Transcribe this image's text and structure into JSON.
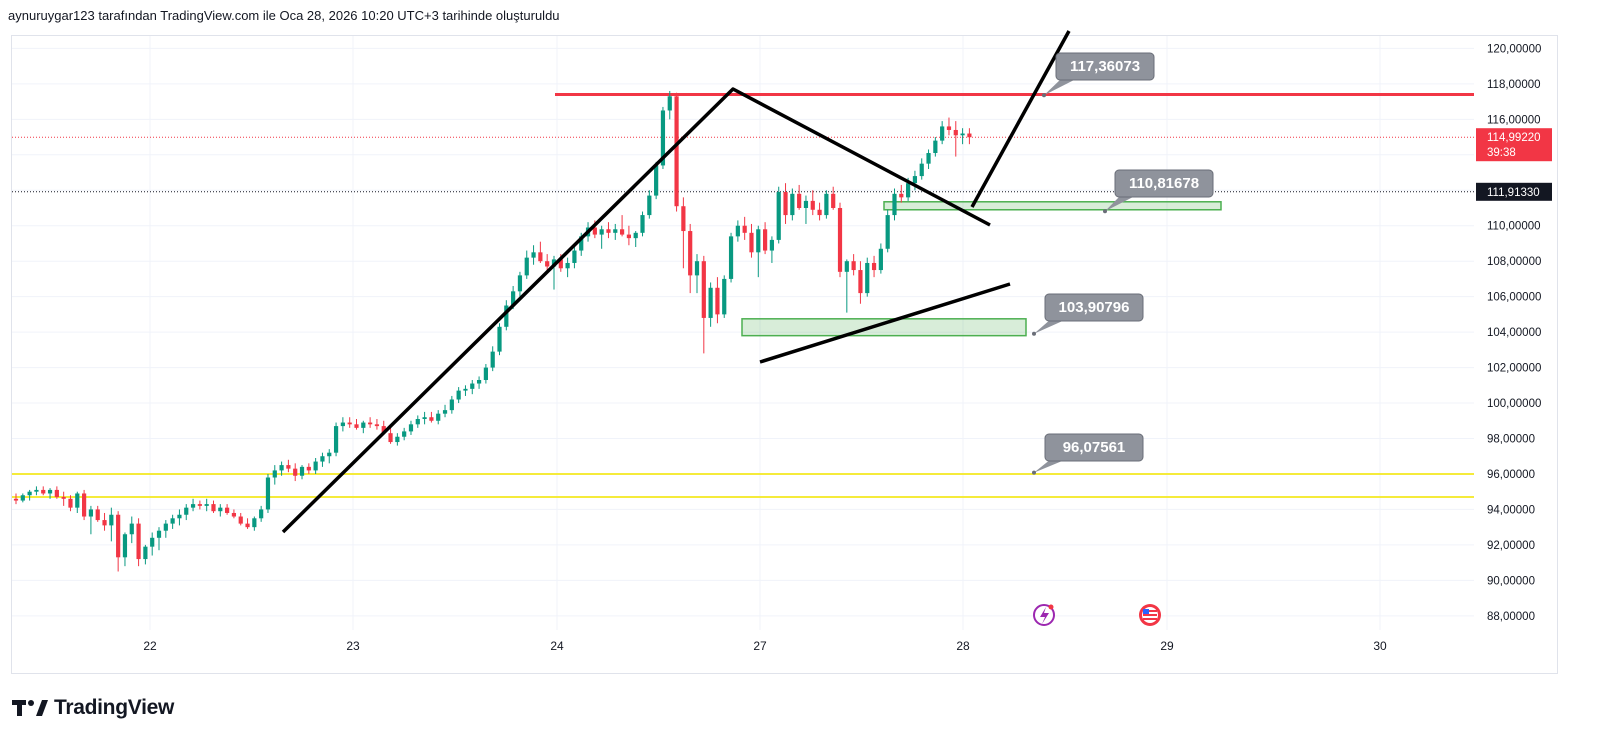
{
  "header": {
    "text": "aynuruygar123 tarafından TradingView.com ile Oca 28, 2026 10:20 UTC+3 tarihinde oluşturuldu"
  },
  "brand": {
    "name": "TradingView"
  },
  "chart_data": {
    "type": "candlestick",
    "yticks": [
      "120,00000",
      "118,00000",
      "116,00000",
      "114,00000",
      "112,00000",
      "110,00000",
      "108,00000",
      "106,00000",
      "104,00000",
      "102,00000",
      "100,00000",
      "98,00000",
      "96,00000",
      "94,00000",
      "92,00000",
      "90,00000",
      "88,00000"
    ],
    "ytick_values": [
      120,
      118,
      116,
      114,
      112,
      110,
      108,
      106,
      104,
      102,
      100,
      98,
      96,
      94,
      92,
      90,
      88
    ],
    "ylim": [
      87.2,
      120.7
    ],
    "xticks": [
      "22",
      "23",
      "24",
      "27",
      "28",
      "29",
      "30"
    ],
    "grid": true,
    "current_price": {
      "label": "114,99220",
      "countdown": "39:38",
      "value": 114.9922,
      "color": "#f23645"
    },
    "ref_price": {
      "label": "111,91330",
      "value": 111.9133
    },
    "price_labels": [
      {
        "text": "117,36073",
        "value": 117.36073
      },
      {
        "text": "110,81678",
        "value": 110.81678
      },
      {
        "text": "103,90796",
        "value": 103.90796
      },
      {
        "text": "96,07561",
        "value": 96.07561
      }
    ],
    "horizontal_lines": [
      {
        "value": 117.4,
        "color": "#f23645"
      },
      {
        "value": 96.0,
        "color": "#f5eb3b"
      },
      {
        "value": 94.7,
        "color": "#f5eb3b"
      }
    ],
    "zones": [
      {
        "from": 103.8,
        "to": 104.75,
        "color": "#4caf50"
      },
      {
        "from": 110.9,
        "to": 111.35,
        "color": "#4caf50"
      }
    ],
    "colors": {
      "up": "#089981",
      "down": "#f23645",
      "trend": "#000000"
    },
    "candles": [
      [
        94.6,
        94.9,
        94.3,
        94.5
      ],
      [
        94.5,
        94.9,
        94.4,
        94.8
      ],
      [
        94.8,
        95.1,
        94.5,
        95.0
      ],
      [
        95.0,
        95.3,
        94.8,
        95.1
      ],
      [
        95.1,
        95.3,
        94.8,
        94.9
      ],
      [
        94.9,
        95.2,
        94.6,
        95.1
      ],
      [
        95.1,
        95.3,
        94.6,
        94.7
      ],
      [
        94.7,
        95.0,
        94.2,
        94.6
      ],
      [
        94.6,
        94.8,
        93.9,
        94.1
      ],
      [
        94.1,
        95.0,
        93.8,
        94.9
      ],
      [
        94.9,
        95.1,
        93.4,
        93.6
      ],
      [
        93.6,
        94.2,
        92.6,
        94.0
      ],
      [
        94.0,
        94.2,
        93.3,
        93.4
      ],
      [
        93.4,
        93.8,
        92.8,
        93.1
      ],
      [
        93.1,
        94.1,
        92.2,
        93.7
      ],
      [
        93.7,
        93.9,
        90.5,
        91.3
      ],
      [
        91.3,
        92.7,
        90.8,
        92.6
      ],
      [
        92.6,
        93.6,
        92.1,
        93.2
      ],
      [
        93.2,
        93.5,
        90.8,
        91.2
      ],
      [
        91.2,
        92.0,
        90.9,
        91.9
      ],
      [
        91.9,
        92.7,
        91.4,
        92.4
      ],
      [
        92.4,
        93.0,
        91.7,
        92.8
      ],
      [
        92.8,
        93.4,
        92.4,
        93.2
      ],
      [
        93.2,
        93.7,
        92.9,
        93.5
      ],
      [
        93.5,
        94.0,
        93.1,
        93.7
      ],
      [
        93.7,
        94.3,
        93.4,
        94.1
      ],
      [
        94.1,
        94.6,
        93.9,
        94.3
      ],
      [
        94.3,
        94.5,
        94.0,
        94.2
      ],
      [
        94.2,
        94.6,
        93.9,
        94.3
      ],
      [
        94.3,
        94.5,
        93.8,
        93.9
      ],
      [
        93.9,
        94.3,
        93.6,
        94.1
      ],
      [
        94.1,
        94.3,
        93.7,
        93.8
      ],
      [
        93.8,
        94.0,
        93.5,
        93.6
      ],
      [
        93.6,
        93.8,
        93.1,
        93.2
      ],
      [
        93.2,
        93.5,
        92.9,
        93.0
      ],
      [
        93.0,
        93.6,
        92.8,
        93.5
      ],
      [
        93.5,
        94.2,
        93.3,
        94.0
      ],
      [
        94.0,
        96.0,
        93.8,
        95.8
      ],
      [
        95.8,
        96.5,
        95.4,
        96.2
      ],
      [
        96.2,
        96.7,
        95.9,
        96.5
      ],
      [
        96.5,
        96.8,
        96.1,
        96.3
      ],
      [
        96.3,
        96.6,
        95.6,
        95.9
      ],
      [
        95.9,
        96.5,
        95.7,
        96.4
      ],
      [
        96.4,
        96.6,
        96.0,
        96.2
      ],
      [
        96.2,
        96.9,
        96.0,
        96.7
      ],
      [
        96.7,
        97.2,
        96.4,
        97.0
      ],
      [
        97.0,
        97.4,
        96.6,
        97.2
      ],
      [
        97.2,
        98.9,
        97.0,
        98.7
      ],
      [
        98.7,
        99.2,
        98.4,
        98.9
      ],
      [
        98.9,
        99.2,
        98.6,
        98.8
      ],
      [
        98.8,
        99.1,
        98.5,
        98.6
      ],
      [
        98.6,
        99.0,
        98.3,
        98.9
      ],
      [
        98.9,
        99.2,
        98.6,
        98.8
      ],
      [
        98.8,
        99.1,
        98.5,
        98.7
      ],
      [
        98.7,
        99.0,
        98.2,
        98.3
      ],
      [
        98.3,
        98.6,
        97.7,
        97.8
      ],
      [
        97.8,
        98.3,
        97.6,
        98.1
      ],
      [
        98.1,
        98.6,
        97.9,
        98.4
      ],
      [
        98.4,
        99.0,
        98.2,
        98.8
      ],
      [
        98.8,
        99.3,
        98.6,
        99.1
      ],
      [
        99.1,
        99.5,
        98.8,
        99.2
      ],
      [
        99.2,
        99.5,
        98.9,
        99.0
      ],
      [
        99.0,
        99.6,
        98.8,
        99.4
      ],
      [
        99.4,
        99.9,
        99.2,
        99.6
      ],
      [
        99.6,
        100.4,
        99.4,
        100.2
      ],
      [
        100.2,
        100.9,
        100.0,
        100.7
      ],
      [
        100.7,
        101.0,
        100.4,
        100.8
      ],
      [
        100.8,
        101.3,
        100.5,
        101.1
      ],
      [
        101.1,
        101.5,
        100.8,
        101.3
      ],
      [
        101.3,
        102.2,
        101.1,
        102.0
      ],
      [
        102.0,
        103.2,
        101.8,
        102.9
      ],
      [
        102.9,
        104.5,
        102.7,
        104.3
      ],
      [
        104.3,
        105.8,
        104.1,
        105.5
      ],
      [
        105.5,
        106.6,
        105.3,
        106.3
      ],
      [
        106.3,
        107.4,
        106.0,
        107.2
      ],
      [
        107.2,
        108.6,
        107.0,
        108.2
      ],
      [
        108.2,
        108.9,
        107.8,
        108.5
      ],
      [
        108.5,
        109.1,
        107.9,
        108.0
      ],
      [
        108.0,
        108.4,
        107.5,
        107.7
      ],
      [
        107.7,
        108.3,
        106.4,
        108.1
      ],
      [
        108.1,
        108.4,
        107.4,
        107.6
      ],
      [
        107.6,
        108.2,
        107.1,
        107.9
      ],
      [
        107.9,
        108.9,
        107.6,
        108.6
      ],
      [
        108.6,
        109.6,
        108.3,
        109.4
      ],
      [
        109.4,
        110.2,
        109.1,
        109.9
      ],
      [
        109.9,
        110.3,
        109.3,
        109.5
      ],
      [
        109.5,
        110.0,
        108.7,
        109.8
      ],
      [
        109.8,
        110.2,
        109.3,
        109.6
      ],
      [
        109.6,
        110.1,
        109.2,
        109.8
      ],
      [
        109.8,
        110.6,
        109.4,
        109.5
      ],
      [
        109.5,
        110.0,
        108.9,
        109.3
      ],
      [
        109.3,
        109.7,
        108.8,
        109.6
      ],
      [
        109.6,
        110.8,
        109.4,
        110.6
      ],
      [
        110.6,
        112.0,
        110.4,
        111.7
      ],
      [
        111.7,
        113.6,
        111.5,
        113.4
      ],
      [
        113.4,
        116.7,
        113.2,
        116.5
      ],
      [
        116.5,
        117.6,
        116.0,
        117.3
      ],
      [
        117.3,
        117.5,
        110.8,
        111.1
      ],
      [
        111.1,
        111.6,
        107.6,
        109.7
      ],
      [
        109.7,
        110.1,
        106.2,
        107.2
      ],
      [
        107.2,
        108.4,
        106.2,
        108.0
      ],
      [
        108.0,
        108.3,
        102.8,
        104.8
      ],
      [
        104.8,
        106.8,
        104.3,
        106.5
      ],
      [
        106.5,
        107.1,
        104.5,
        105.0
      ],
      [
        105.0,
        107.2,
        104.8,
        107.0
      ],
      [
        107.0,
        109.6,
        106.8,
        109.4
      ],
      [
        109.4,
        110.3,
        109.1,
        110.0
      ],
      [
        110.0,
        110.5,
        109.2,
        109.6
      ],
      [
        109.6,
        110.1,
        108.2,
        108.5
      ],
      [
        108.5,
        110.0,
        107.1,
        109.8
      ],
      [
        109.8,
        110.2,
        108.4,
        108.6
      ],
      [
        108.6,
        109.4,
        107.9,
        109.2
      ],
      [
        109.2,
        112.2,
        109.0,
        111.9
      ],
      [
        111.9,
        112.4,
        110.1,
        110.6
      ],
      [
        110.6,
        112.1,
        110.3,
        111.8
      ],
      [
        111.8,
        112.3,
        110.9,
        111.0
      ],
      [
        111.0,
        111.7,
        110.1,
        111.4
      ],
      [
        111.4,
        112.0,
        110.6,
        110.9
      ],
      [
        110.9,
        111.3,
        110.3,
        110.6
      ],
      [
        110.6,
        112.0,
        110.4,
        111.8
      ],
      [
        111.8,
        112.2,
        110.9,
        111.0
      ],
      [
        111.0,
        111.3,
        107.1,
        107.4
      ],
      [
        107.4,
        108.1,
        105.1,
        108.0
      ],
      [
        108.0,
        108.4,
        107.2,
        107.5
      ],
      [
        107.5,
        108.0,
        105.6,
        106.2
      ],
      [
        106.2,
        108.2,
        106.0,
        107.9
      ],
      [
        107.9,
        108.3,
        107.1,
        107.5
      ],
      [
        107.5,
        109.0,
        107.3,
        108.7
      ],
      [
        108.7,
        110.9,
        108.5,
        110.6
      ],
      [
        110.6,
        112.1,
        110.3,
        111.8
      ],
      [
        111.8,
        112.3,
        111.3,
        111.6
      ],
      [
        111.6,
        112.7,
        111.4,
        112.4
      ],
      [
        112.4,
        113.1,
        112.0,
        112.8
      ],
      [
        112.8,
        113.8,
        112.6,
        113.5
      ],
      [
        113.5,
        114.3,
        113.2,
        114.1
      ],
      [
        114.1,
        115.0,
        113.9,
        114.8
      ],
      [
        114.8,
        115.9,
        114.6,
        115.6
      ],
      [
        115.6,
        116.1,
        115.1,
        115.4
      ],
      [
        115.4,
        115.9,
        113.9,
        115.1
      ],
      [
        115.1,
        115.5,
        114.6,
        115.2
      ],
      [
        115.2,
        115.5,
        114.6,
        114.99
      ]
    ]
  }
}
